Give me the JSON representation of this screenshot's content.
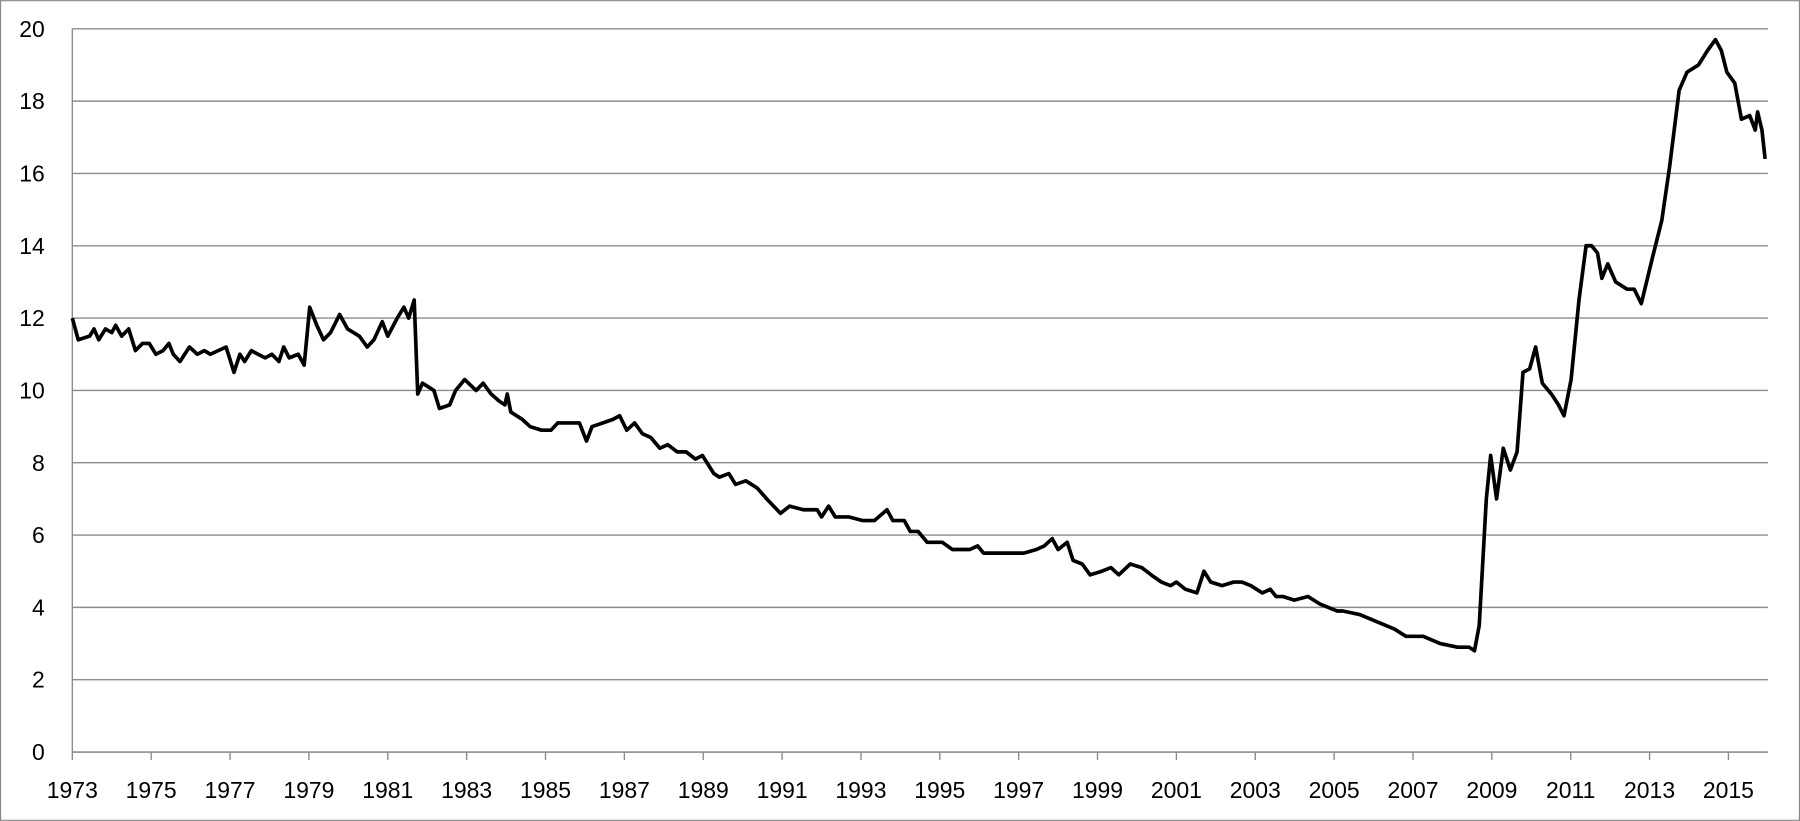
{
  "chart_data": {
    "type": "line",
    "color": "#000000",
    "grid": true,
    "xlim": [
      1973,
      2016
    ],
    "xticks": [
      1973,
      1975,
      1977,
      1979,
      1981,
      1983,
      1985,
      1987,
      1989,
      1991,
      1993,
      1995,
      1997,
      1999,
      2001,
      2003,
      2005,
      2007,
      2009,
      2011,
      2013,
      2015
    ],
    "ylim": [
      0,
      20
    ],
    "yticks": [
      0,
      2,
      4,
      6,
      8,
      10,
      12,
      14,
      16,
      18,
      20
    ],
    "x": [
      1973.0,
      1973.15,
      1973.44,
      1973.55,
      1973.67,
      1973.84,
      1974.0,
      1974.1,
      1974.25,
      1974.43,
      1974.6,
      1974.78,
      1974.95,
      1975.12,
      1975.3,
      1975.45,
      1975.56,
      1975.73,
      1975.97,
      1976.17,
      1976.35,
      1976.5,
      1976.7,
      1976.9,
      1977.1,
      1977.25,
      1977.37,
      1977.54,
      1977.71,
      1977.89,
      1978.06,
      1978.24,
      1978.36,
      1978.5,
      1978.73,
      1978.88,
      1979.02,
      1979.2,
      1979.37,
      1979.55,
      1979.78,
      1979.98,
      1980.28,
      1980.48,
      1980.65,
      1980.86,
      1981.0,
      1981.24,
      1981.41,
      1981.53,
      1981.67,
      1981.76,
      1981.88,
      1982.17,
      1982.31,
      1982.57,
      1982.72,
      1982.95,
      1983.24,
      1983.42,
      1983.62,
      1983.83,
      1983.97,
      1984.03,
      1984.12,
      1984.41,
      1984.61,
      1984.9,
      1985.14,
      1985.31,
      1985.57,
      1985.86,
      1986.04,
      1986.18,
      1986.45,
      1986.71,
      1986.88,
      1987.06,
      1987.26,
      1987.46,
      1987.67,
      1987.9,
      1988.1,
      1988.34,
      1988.57,
      1988.8,
      1988.98,
      1989.27,
      1989.41,
      1989.65,
      1989.82,
      1990.08,
      1990.37,
      1990.61,
      1990.96,
      1991.19,
      1991.54,
      1991.89,
      1992.0,
      1992.18,
      1992.35,
      1992.7,
      1993.05,
      1993.34,
      1993.66,
      1993.81,
      1994.1,
      1994.25,
      1994.45,
      1994.68,
      1994.89,
      1995.06,
      1995.32,
      1995.56,
      1995.76,
      1995.96,
      1996.11,
      1996.49,
      1996.92,
      1997.13,
      1997.45,
      1997.65,
      1997.85,
      1998.0,
      1998.23,
      1998.38,
      1998.61,
      1998.81,
      1999.11,
      1999.34,
      1999.54,
      1999.83,
      2000.12,
      2000.36,
      2000.62,
      2000.85,
      2001.0,
      2001.23,
      2001.52,
      2001.7,
      2001.87,
      2002.16,
      2002.45,
      2002.66,
      2002.89,
      2003.18,
      2003.38,
      2003.53,
      2003.7,
      2003.99,
      2004.34,
      2004.63,
      2005.07,
      2005.22,
      2005.65,
      2006.09,
      2006.53,
      2006.82,
      2007.26,
      2007.69,
      2008.13,
      2008.42,
      2008.56,
      2008.68,
      2008.86,
      2008.97,
      2009.12,
      2009.29,
      2009.47,
      2009.64,
      2009.79,
      2009.96,
      2010.11,
      2010.28,
      2010.51,
      2010.69,
      2010.83,
      2011.01,
      2011.21,
      2011.39,
      2011.53,
      2011.68,
      2011.79,
      2011.94,
      2012.14,
      2012.43,
      2012.61,
      2012.79,
      2013.08,
      2013.31,
      2013.51,
      2013.75,
      2013.95,
      2014.24,
      2014.47,
      2014.67,
      2014.82,
      2014.96,
      2015.16,
      2015.33,
      2015.54,
      2015.68,
      2015.74,
      2015.85,
      2015.93
    ],
    "values": [
      12.0,
      11.4,
      11.5,
      11.7,
      11.4,
      11.7,
      11.6,
      11.8,
      11.5,
      11.7,
      11.1,
      11.3,
      11.3,
      11.0,
      11.1,
      11.3,
      11.0,
      10.8,
      11.2,
      11.0,
      11.1,
      11.0,
      11.1,
      11.2,
      10.5,
      11.0,
      10.8,
      11.1,
      11.0,
      10.9,
      11.0,
      10.8,
      11.2,
      10.9,
      11.0,
      10.7,
      12.3,
      11.8,
      11.4,
      11.6,
      12.1,
      11.7,
      11.5,
      11.2,
      11.4,
      11.9,
      11.5,
      12.0,
      12.3,
      12.0,
      12.5,
      9.9,
      10.2,
      10.0,
      9.5,
      9.6,
      10.0,
      10.3,
      10.0,
      10.2,
      9.9,
      9.7,
      9.6,
      9.9,
      9.4,
      9.2,
      9.0,
      8.9,
      8.9,
      9.1,
      9.1,
      9.1,
      8.6,
      9.0,
      9.1,
      9.2,
      9.3,
      8.9,
      9.1,
      8.8,
      8.7,
      8.4,
      8.5,
      8.3,
      8.3,
      8.1,
      8.2,
      7.7,
      7.6,
      7.7,
      7.4,
      7.5,
      7.3,
      7.0,
      6.6,
      6.8,
      6.7,
      6.7,
      6.5,
      6.8,
      6.5,
      6.5,
      6.4,
      6.4,
      6.7,
      6.4,
      6.4,
      6.1,
      6.1,
      5.8,
      5.8,
      5.8,
      5.6,
      5.6,
      5.6,
      5.7,
      5.5,
      5.5,
      5.5,
      5.5,
      5.6,
      5.7,
      5.9,
      5.6,
      5.8,
      5.3,
      5.2,
      4.9,
      5.0,
      5.1,
      4.9,
      5.2,
      5.1,
      4.9,
      4.7,
      4.6,
      4.7,
      4.5,
      4.4,
      5.0,
      4.7,
      4.6,
      4.7,
      4.7,
      4.6,
      4.4,
      4.5,
      4.3,
      4.3,
      4.2,
      4.3,
      4.1,
      3.9,
      3.9,
      3.8,
      3.6,
      3.4,
      3.2,
      3.2,
      3.0,
      2.9,
      2.9,
      2.8,
      3.5,
      7.0,
      8.2,
      7.0,
      8.4,
      7.8,
      8.3,
      10.5,
      10.6,
      11.2,
      10.2,
      9.9,
      9.6,
      9.3,
      10.3,
      12.5,
      14.0,
      14.0,
      13.8,
      13.1,
      13.5,
      13.0,
      12.8,
      12.8,
      12.4,
      13.7,
      14.7,
      16.2,
      18.3,
      18.8,
      19.0,
      19.4,
      19.7,
      19.4,
      18.8,
      18.5,
      17.5,
      17.6,
      17.2,
      17.7,
      17.2,
      16.4
    ]
  }
}
